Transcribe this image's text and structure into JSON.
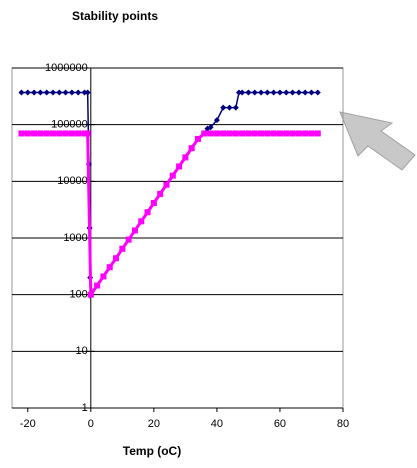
{
  "chart_data": {
    "type": "line",
    "title": "Stability points",
    "x_label": "Temp (oC)",
    "xlim": [
      -25,
      80
    ],
    "xticks": [
      -20,
      0,
      20,
      40,
      60,
      80
    ],
    "ylim": [
      1,
      1000000
    ],
    "yticks": [
      1,
      10,
      100,
      1000,
      10000,
      100000,
      1000000
    ],
    "log_y": true,
    "grid": true,
    "series": [
      {
        "color": "#000080",
        "x": [
          -22,
          -20,
          -18,
          -16,
          -14,
          -12,
          -10,
          -8,
          -6,
          -4,
          -2,
          -1,
          -0.6,
          -0.4,
          -0.2,
          0,
          2,
          4,
          6,
          8,
          10,
          12,
          14,
          16,
          18,
          20,
          22,
          24,
          26,
          28,
          30,
          32,
          34,
          36,
          37,
          38,
          40,
          42,
          44,
          46,
          47,
          48,
          50,
          52,
          54,
          56,
          58,
          60,
          62,
          64,
          66,
          68,
          70,
          72
        ],
        "values": [
          370000,
          370000,
          370000,
          370000,
          370000,
          370000,
          370000,
          370000,
          370000,
          370000,
          370000,
          370000,
          20000,
          1500,
          200,
          100,
          145,
          210,
          305,
          440,
          645,
          935,
          1360,
          1970,
          2850,
          4150,
          6000,
          8700,
          12600,
          18300,
          26500,
          38500,
          56000,
          70000,
          85000,
          90000,
          120000,
          200000,
          200000,
          200000,
          370000,
          370000,
          370000,
          370000,
          370000,
          370000,
          370000,
          370000,
          370000,
          370000,
          370000,
          370000,
          370000,
          370000
        ]
      },
      {
        "color": "#ff00ff",
        "x": [
          -22,
          -20,
          -18,
          -16,
          -14,
          -12,
          -10,
          -8,
          -6,
          -4,
          -2,
          -1,
          0,
          2,
          4,
          6,
          8,
          10,
          12,
          14,
          16,
          18,
          20,
          22,
          24,
          26,
          28,
          30,
          32,
          34,
          36,
          38,
          40,
          42,
          44,
          46,
          48,
          50,
          52,
          54,
          56,
          58,
          60,
          62,
          64,
          66,
          68,
          70,
          72
        ],
        "values": [
          70000,
          70000,
          70000,
          70000,
          70000,
          70000,
          70000,
          70000,
          70000,
          70000,
          70000,
          70000,
          100,
          145,
          210,
          305,
          440,
          645,
          935,
          1360,
          1970,
          2850,
          4150,
          6000,
          8700,
          12600,
          18300,
          26500,
          38500,
          56000,
          70000,
          70000,
          70000,
          70000,
          70000,
          70000,
          70000,
          70000,
          70000,
          70000,
          70000,
          70000,
          70000,
          70000,
          70000,
          70000,
          70000,
          70000,
          70000
        ]
      }
    ]
  }
}
